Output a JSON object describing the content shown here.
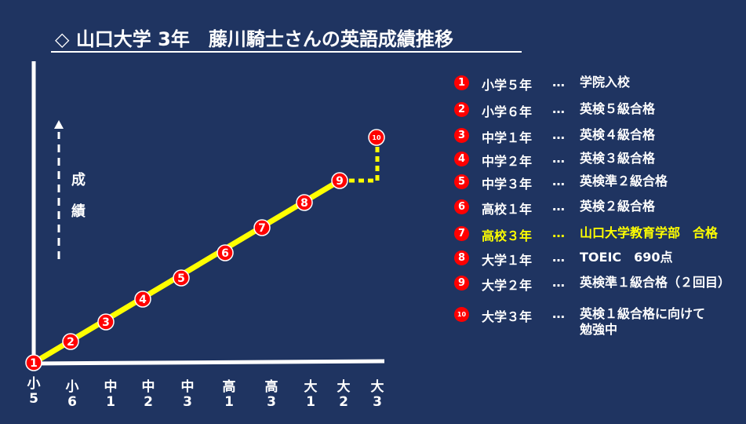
{
  "title": "◇  山口大学 3年　藤川騎士さんの英語成績推移",
  "y_axis_label": [
    "成",
    "績"
  ],
  "x_ticks": [
    [
      "小",
      "5"
    ],
    [
      "小",
      "6"
    ],
    [
      "中",
      "1"
    ],
    [
      "中",
      "2"
    ],
    [
      "中",
      "3"
    ],
    [
      "高",
      "1"
    ],
    [
      "高",
      "3"
    ],
    [
      "大",
      "1"
    ],
    [
      "大",
      "2"
    ],
    [
      "大",
      "3"
    ]
  ],
  "chart_data": {
    "type": "line",
    "title": "山口大学 3年　藤川騎士さんの英語成績推移",
    "ylabel": "成績",
    "categories": [
      "小5",
      "小6",
      "中1",
      "中2",
      "中3",
      "高1",
      "高3",
      "大1",
      "大2",
      "大3"
    ],
    "points": [
      1,
      2,
      3,
      4,
      5,
      6,
      7,
      8,
      9,
      10
    ],
    "line_color": "#ffff00",
    "marker_color": "#ff0000",
    "last_segment_style": "dotted"
  },
  "legend": [
    {
      "num": "1",
      "grade": "小学５年",
      "dots": "…",
      "event": "学院入校",
      "highlight": false
    },
    {
      "num": "2",
      "grade": "小学６年",
      "dots": "…",
      "event": "英検５級合格",
      "highlight": false
    },
    {
      "num": "3",
      "grade": "中学１年",
      "dots": "…",
      "event": "英検４級合格",
      "highlight": false
    },
    {
      "num": "4",
      "grade": "中学２年",
      "dots": "…",
      "event": "英検３級合格",
      "highlight": false
    },
    {
      "num": "5",
      "grade": "中学３年",
      "dots": "…",
      "event": "英検準２級合格",
      "highlight": false
    },
    {
      "num": "6",
      "grade": "高校１年",
      "dots": "…",
      "event": "英検２級合格",
      "highlight": false
    },
    {
      "num": "7",
      "grade": "高校３年",
      "dots": "…",
      "event": "山口大学教育学部　合格",
      "highlight": true
    },
    {
      "num": "8",
      "grade": "大学１年",
      "dots": "…",
      "event": "TOEIC　690点",
      "highlight": false
    },
    {
      "num": "9",
      "grade": "大学２年",
      "dots": "…",
      "event": "英検準１級合格（２回目）",
      "highlight": false
    },
    {
      "num": "10",
      "grade": "大学３年",
      "dots": "…",
      "event": "英検１級合格に向けて\n勉強中",
      "highlight": false
    }
  ],
  "colors": {
    "background": "#1f3461",
    "line": "#ffff00",
    "marker": "#ff0000",
    "highlight_text": "#ffff00"
  }
}
